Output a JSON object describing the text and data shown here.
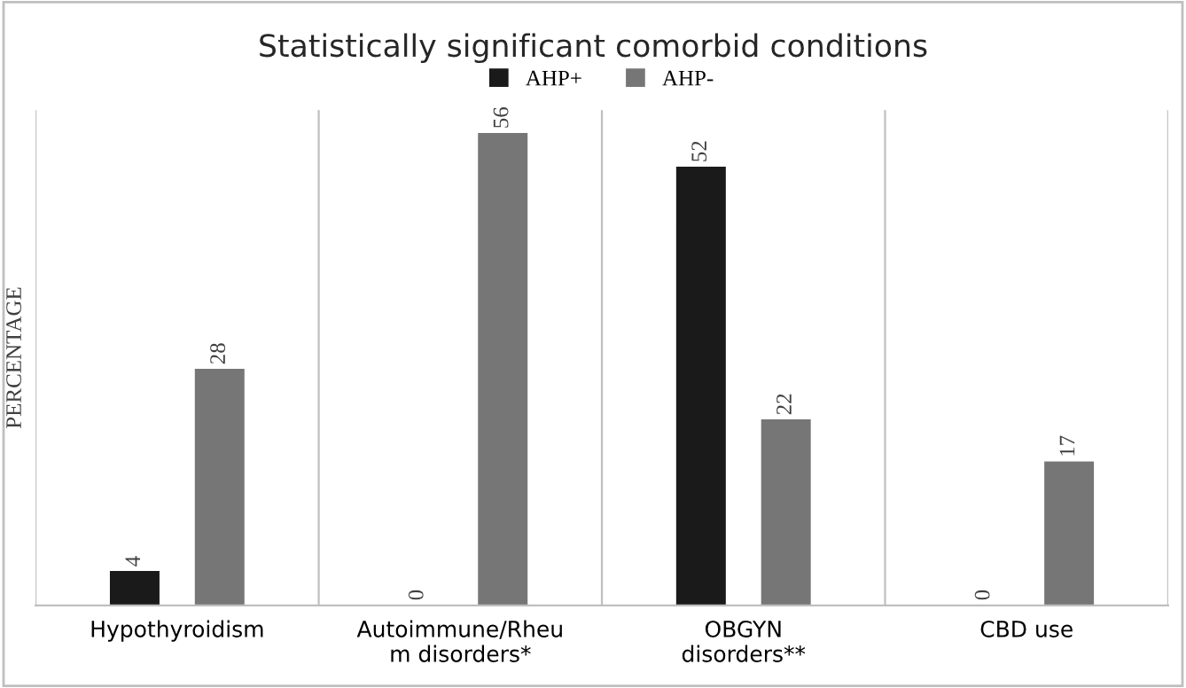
{
  "chart_data": {
    "type": "bar",
    "title": "Statistically significant comorbid conditions",
    "ylabel": "PERCENTAGE",
    "categories": [
      "Hypothyroidism",
      "Autoimmune/Rheu\nm disorders*",
      "OBGYN\ndisorders**",
      "CBD use"
    ],
    "series": [
      {
        "name": "AHP+",
        "color": "#1a1a1a",
        "values": [
          4,
          0,
          52,
          0
        ]
      },
      {
        "name": "AHP-",
        "color": "#767676",
        "values": [
          28,
          56,
          22,
          17
        ]
      }
    ],
    "data_labels": true,
    "legend": "top",
    "grid": "x"
  }
}
